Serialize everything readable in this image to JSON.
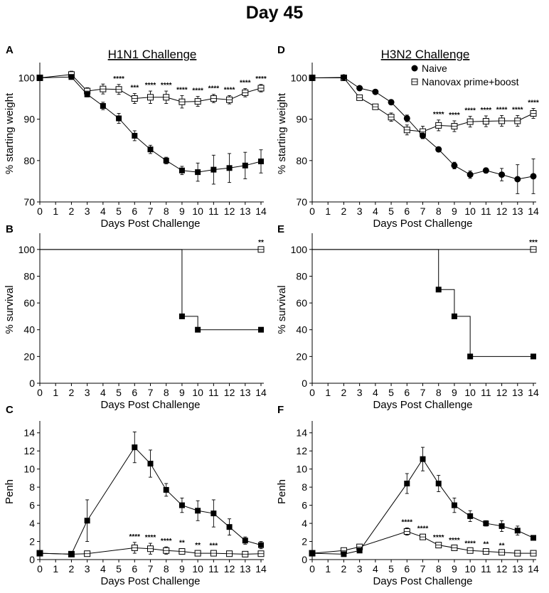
{
  "figure_title": "Day 45",
  "legend": [
    {
      "label": "Naive",
      "marker": "filled-circle"
    },
    {
      "label": "Nanovax prime+boost",
      "marker": "open-square"
    }
  ],
  "chart_data": [
    {
      "id": "A",
      "type": "line",
      "panel_label": "A",
      "title": "H1N1 Challenge",
      "xlabel": "Days Post Challenge",
      "ylabel": "% starting weight",
      "xlim": [
        0,
        14
      ],
      "xticks": [
        0,
        1,
        2,
        3,
        4,
        5,
        6,
        7,
        8,
        9,
        10,
        11,
        12,
        13,
        14
      ],
      "ylim": [
        70,
        103
      ],
      "yticks": [
        70,
        80,
        90,
        100
      ],
      "series": [
        {
          "name": "Naive",
          "marker": "filled-square",
          "x": [
            0,
            2,
            3,
            4,
            5,
            6,
            7,
            8,
            9,
            10,
            11,
            12,
            13,
            14
          ],
          "y": [
            100,
            100.2,
            96,
            93.2,
            90.2,
            86,
            82.7,
            80,
            77.6,
            77.2,
            77.8,
            78.2,
            78.8,
            79.8
          ],
          "err": [
            0.5,
            0.5,
            0.6,
            0.9,
            1.2,
            1.2,
            1,
            0.8,
            1,
            2.2,
            3.5,
            3.5,
            3.2,
            2.8
          ]
        },
        {
          "name": "Nanovax prime+boost",
          "marker": "open-square",
          "x": [
            0,
            2,
            3,
            4,
            5,
            6,
            7,
            8,
            9,
            10,
            11,
            12,
            13,
            14
          ],
          "y": [
            100,
            100.8,
            96.8,
            97.3,
            97.2,
            95,
            95.3,
            95.3,
            94.2,
            94.3,
            95,
            94.7,
            96.4,
            97.5
          ],
          "err": [
            0.4,
            0.8,
            0.8,
            1.2,
            1.2,
            1.2,
            1.5,
            1.5,
            1.5,
            1.2,
            1.0,
            1.0,
            1.0,
            0.9
          ]
        }
      ],
      "annotations": [
        {
          "x": 5,
          "text": "****"
        },
        {
          "x": 6,
          "text": "***"
        },
        {
          "x": 7,
          "text": "****"
        },
        {
          "x": 8,
          "text": "****"
        },
        {
          "x": 9,
          "text": "****"
        },
        {
          "x": 10,
          "text": "****"
        },
        {
          "x": 11,
          "text": "****"
        },
        {
          "x": 12,
          "text": "****"
        },
        {
          "x": 13,
          "text": "****"
        },
        {
          "x": 14,
          "text": "****"
        }
      ]
    },
    {
      "id": "D",
      "type": "line",
      "panel_label": "D",
      "title": "H3N2 Challenge",
      "xlabel": "Days Post Challenge",
      "ylabel": "% starting weight",
      "xlim": [
        0,
        14
      ],
      "xticks": [
        0,
        1,
        2,
        3,
        4,
        5,
        6,
        7,
        8,
        9,
        10,
        11,
        12,
        13,
        14
      ],
      "ylim": [
        70,
        103
      ],
      "yticks": [
        70,
        80,
        90,
        100
      ],
      "series": [
        {
          "name": "Naive",
          "marker": "filled-circle",
          "x": [
            0,
            2,
            3,
            4,
            5,
            6,
            7,
            8,
            9,
            10,
            11,
            12,
            13,
            14
          ],
          "y": [
            100,
            100.1,
            97.5,
            96.6,
            94.1,
            90.2,
            86,
            82.7,
            78.8,
            76.6,
            77.6,
            76.6,
            75.5,
            76.2
          ],
          "err": [
            0.3,
            0.4,
            0.5,
            0.5,
            0.6,
            0.8,
            0.7,
            0.6,
            0.8,
            0.9,
            0.6,
            1.5,
            3.5,
            4.2
          ]
        },
        {
          "name": "Nanovax prime+boost",
          "marker": "open-square",
          "x": [
            0,
            2,
            3,
            4,
            5,
            6,
            7,
            8,
            9,
            10,
            11,
            12,
            13,
            14
          ],
          "y": [
            100,
            100,
            95.2,
            93,
            90.5,
            87.4,
            87,
            88.5,
            88.3,
            89.4,
            89.5,
            89.6,
            89.6,
            91.4
          ],
          "err": [
            0.3,
            0.5,
            0.6,
            0.6,
            1.0,
            1.2,
            1.3,
            1.3,
            1.3,
            1.3,
            1.3,
            1.3,
            1.3,
            1.2
          ]
        }
      ],
      "annotations": [
        {
          "x": 8,
          "text": "****"
        },
        {
          "x": 9,
          "text": "****"
        },
        {
          "x": 10,
          "text": "****"
        },
        {
          "x": 11,
          "text": "****"
        },
        {
          "x": 12,
          "text": "****"
        },
        {
          "x": 13,
          "text": "****"
        },
        {
          "x": 14,
          "text": "****"
        }
      ]
    },
    {
      "id": "B",
      "type": "step",
      "panel_label": "B",
      "xlabel": "Days Post Challenge",
      "ylabel": "% survival",
      "xlim": [
        0,
        14
      ],
      "xticks": [
        0,
        1,
        2,
        3,
        4,
        5,
        6,
        7,
        8,
        9,
        10,
        11,
        12,
        13,
        14
      ],
      "ylim": [
        0,
        110
      ],
      "yticks": [
        0,
        20,
        40,
        60,
        80,
        100
      ],
      "series": [
        {
          "name": "Naive",
          "marker": "filled-square",
          "steps": [
            [
              0,
              100
            ],
            [
              9,
              50
            ],
            [
              10,
              40
            ],
            [
              14,
              40
            ]
          ],
          "markers_at": [
            [
              9,
              50
            ],
            [
              10,
              40
            ],
            [
              14,
              40
            ]
          ]
        },
        {
          "name": "Nanovax prime+boost",
          "marker": "open-square",
          "steps": [
            [
              0,
              100
            ],
            [
              14,
              100
            ]
          ],
          "markers_at": [
            [
              14,
              100
            ]
          ]
        }
      ],
      "annotations": [
        {
          "x": 14,
          "y": 100,
          "text": "**"
        }
      ]
    },
    {
      "id": "E",
      "type": "step",
      "panel_label": "E",
      "xlabel": "Days Post Challenge",
      "ylabel": "% survival",
      "xlim": [
        0,
        14
      ],
      "xticks": [
        0,
        1,
        2,
        3,
        4,
        5,
        6,
        7,
        8,
        9,
        10,
        11,
        12,
        13,
        14
      ],
      "ylim": [
        0,
        110
      ],
      "yticks": [
        0,
        20,
        40,
        60,
        80,
        100
      ],
      "series": [
        {
          "name": "Naive",
          "marker": "filled-square",
          "steps": [
            [
              0,
              100
            ],
            [
              8,
              70
            ],
            [
              9,
              50
            ],
            [
              10,
              20
            ],
            [
              14,
              20
            ]
          ],
          "markers_at": [
            [
              8,
              70
            ],
            [
              9,
              50
            ],
            [
              10,
              20
            ],
            [
              14,
              20
            ]
          ]
        },
        {
          "name": "Nanovax prime+boost",
          "marker": "open-square",
          "steps": [
            [
              0,
              100
            ],
            [
              14,
              100
            ]
          ],
          "markers_at": [
            [
              14,
              100
            ]
          ]
        }
      ],
      "annotations": [
        {
          "x": 14,
          "y": 100,
          "text": "***"
        }
      ]
    },
    {
      "id": "C",
      "type": "line",
      "panel_label": "C",
      "xlabel": "Days Post Challenge",
      "ylabel": "Penh",
      "xlim": [
        0,
        14
      ],
      "xticks": [
        0,
        1,
        2,
        3,
        4,
        5,
        6,
        7,
        8,
        9,
        10,
        11,
        12,
        13,
        14
      ],
      "ylim": [
        0,
        15
      ],
      "yticks": [
        0,
        2,
        4,
        6,
        8,
        10,
        12,
        14
      ],
      "series": [
        {
          "name": "Naive",
          "marker": "filled-square",
          "x": [
            0,
            2,
            3,
            6,
            7,
            8,
            9,
            10,
            11,
            12,
            13,
            14
          ],
          "y": [
            0.7,
            0.6,
            4.3,
            12.4,
            10.6,
            7.7,
            6,
            5.4,
            5.1,
            3.6,
            2.1,
            1.6
          ],
          "err": [
            0.15,
            0.1,
            2.3,
            1.7,
            1.5,
            0.7,
            0.8,
            1.1,
            1.5,
            0.9,
            0.4,
            0.4
          ]
        },
        {
          "name": "Nanovax prime+boost",
          "marker": "open-square",
          "x": [
            0,
            2,
            3,
            6,
            7,
            8,
            9,
            10,
            11,
            12,
            13,
            14
          ],
          "y": [
            0.7,
            0.6,
            0.65,
            1.3,
            1.2,
            1,
            0.9,
            0.7,
            0.7,
            0.65,
            0.6,
            0.65
          ],
          "err": [
            0.1,
            0.1,
            0.15,
            0.6,
            0.6,
            0.4,
            0.3,
            0.25,
            0.2,
            0.2,
            0.2,
            0.25
          ]
        }
      ],
      "annotations": [
        {
          "x": 6,
          "text": "****"
        },
        {
          "x": 7,
          "text": "****"
        },
        {
          "x": 8,
          "text": "****"
        },
        {
          "x": 9,
          "text": "**"
        },
        {
          "x": 10,
          "text": "**"
        },
        {
          "x": 11,
          "text": "***"
        }
      ]
    },
    {
      "id": "F",
      "type": "line",
      "panel_label": "F",
      "xlabel": "Days Post Challenge",
      "ylabel": "Penh",
      "xlim": [
        0,
        14
      ],
      "xticks": [
        0,
        1,
        2,
        3,
        4,
        5,
        6,
        7,
        8,
        9,
        10,
        11,
        12,
        13,
        14
      ],
      "ylim": [
        0,
        15
      ],
      "yticks": [
        0,
        2,
        4,
        6,
        8,
        10,
        12,
        14
      ],
      "series": [
        {
          "name": "Naive",
          "marker": "filled-square",
          "x": [
            0,
            2,
            3,
            6,
            7,
            8,
            9,
            10,
            11,
            12,
            13,
            14
          ],
          "y": [
            0.7,
            0.6,
            1,
            8.4,
            11.1,
            8.4,
            6,
            4.8,
            4,
            3.7,
            3.2,
            2.4
          ],
          "err": [
            0.1,
            0.1,
            0.2,
            1.1,
            1.3,
            0.9,
            0.8,
            0.6,
            0.3,
            0.6,
            0.5,
            0.2
          ]
        },
        {
          "name": "Nanovax prime+boost",
          "marker": "open-square",
          "x": [
            0,
            2,
            3,
            6,
            7,
            8,
            9,
            10,
            11,
            12,
            13,
            14
          ],
          "y": [
            0.7,
            1,
            1.4,
            3.1,
            2.5,
            1.6,
            1.3,
            1,
            0.9,
            0.8,
            0.7,
            0.7
          ],
          "err": [
            0.1,
            0.15,
            0.2,
            0.4,
            0.3,
            0.2,
            0.2,
            0.15,
            0.15,
            0.1,
            0.1,
            0.1
          ]
        }
      ],
      "annotations": [
        {
          "x": 6,
          "text": "****"
        },
        {
          "x": 7,
          "text": "****"
        },
        {
          "x": 8,
          "text": "****"
        },
        {
          "x": 9,
          "text": "****"
        },
        {
          "x": 10,
          "text": "****"
        },
        {
          "x": 11,
          "text": "**"
        },
        {
          "x": 12,
          "text": "**"
        }
      ]
    }
  ]
}
